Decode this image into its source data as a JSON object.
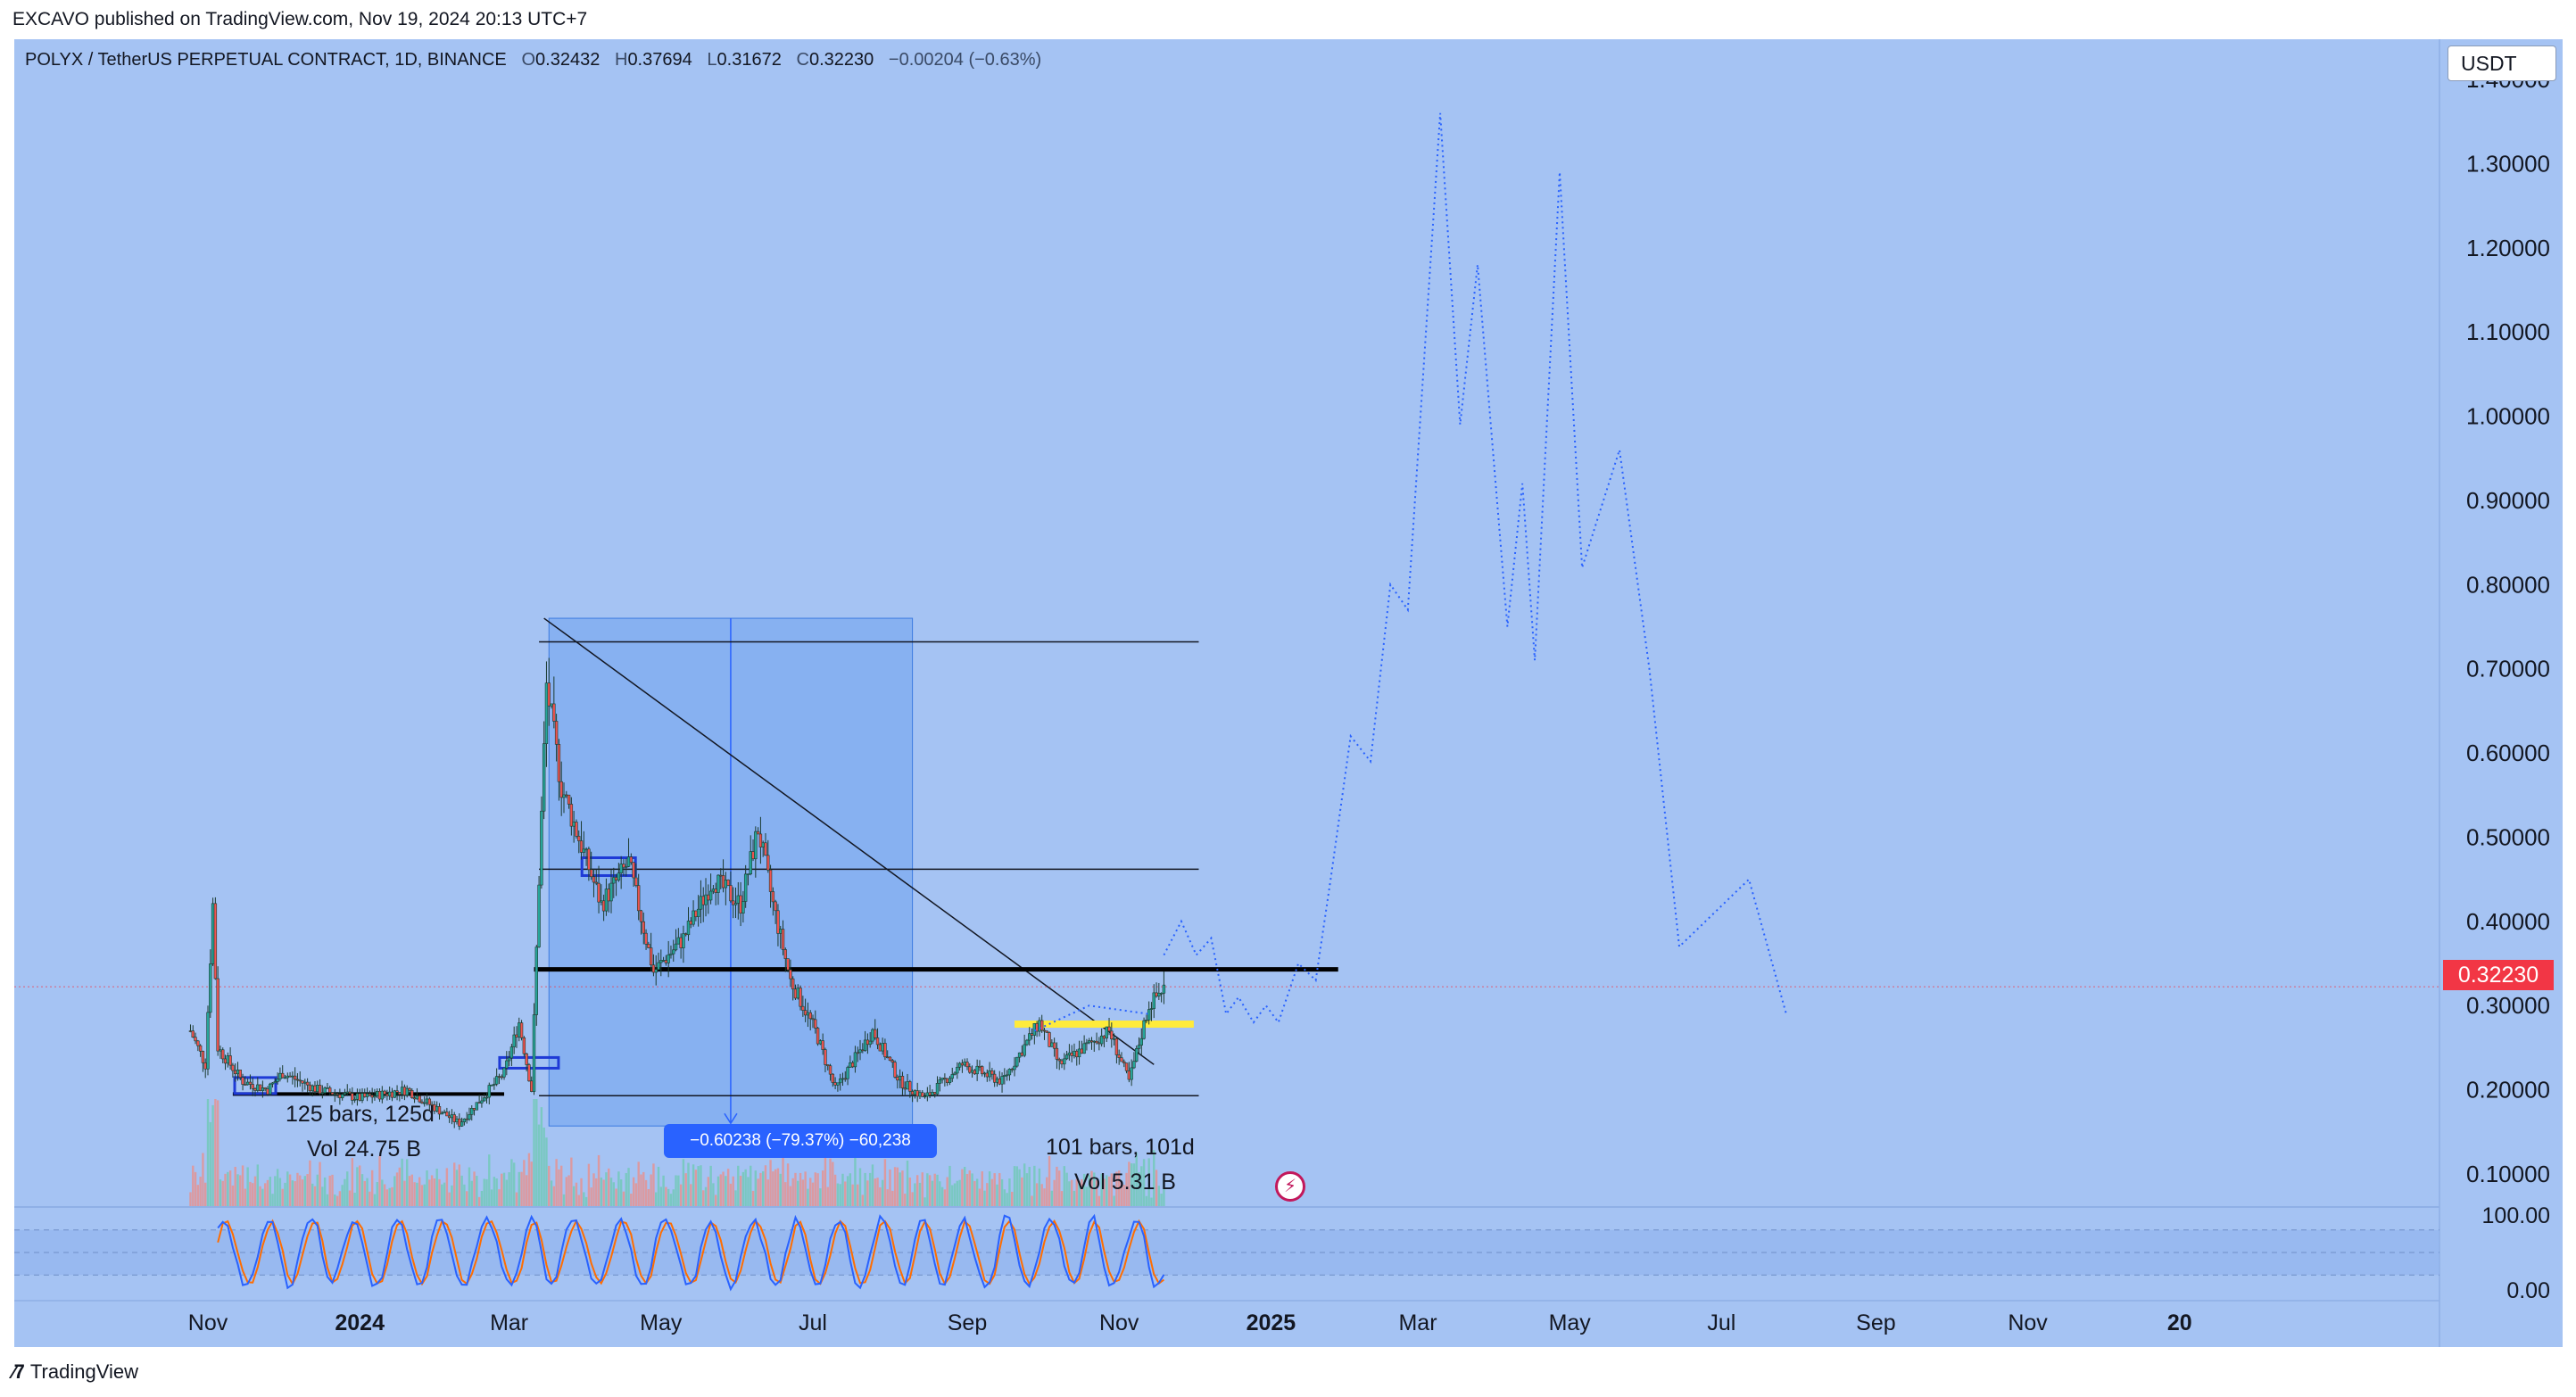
{
  "publisher": "EXCAVO published on TradingView.com, Nov 19, 2024 20:13 UTC+7",
  "symbol": {
    "name": "POLYX / TetherUS PERPETUAL CONTRACT, 1D, BINANCE",
    "o_label": "O",
    "o": "0.32432",
    "h_label": "H",
    "h": "0.37694",
    "l_label": "L",
    "l": "0.31672",
    "c_label": "C",
    "c": "0.32230",
    "change": "−0.00204 (−0.63%)"
  },
  "currency": "USDT",
  "last_price": "0.32230",
  "measure_label": "−0.60238 (−79.37%) −60,238",
  "range1": {
    "bars": "125 bars, 125d",
    "vol": "Vol 24.75 B"
  },
  "range2": {
    "bars": "101 bars, 101d",
    "vol": "Vol 5.31 B"
  },
  "footer": "TradingView",
  "colors": {
    "background": "#a5c3f3",
    "up_candle": "#26a69a",
    "down_candle": "#ef5350",
    "projection": "#2962ff",
    "measure_box": "#6fa3ee",
    "support_line": "#000000",
    "highlight": "#ffeb3b",
    "last_price": "#f23645",
    "stoch_k": "#2962ff",
    "stoch_d": "#ff6d00"
  },
  "icons": [
    "tradingview-logo-icon",
    "flash-icon"
  ],
  "chart_data": {
    "type": "candlestick",
    "y_ticks": [
      "1.40000",
      "1.30000",
      "1.20000",
      "1.10000",
      "1.00000",
      "0.90000",
      "0.80000",
      "0.70000",
      "0.60000",
      "0.50000",
      "0.40000",
      "0.30000",
      "0.20000",
      "0.10000"
    ],
    "ylim": [
      0.06,
      1.44
    ],
    "x_ticks": [
      "Nov",
      "2024",
      "Mar",
      "May",
      "Jul",
      "Sep",
      "Nov",
      "2025",
      "Mar",
      "May",
      "Jul",
      "Sep",
      "Nov",
      "20"
    ],
    "price_path": [
      [
        "2023-10-25",
        0.27
      ],
      [
        "2023-10-31",
        0.23
      ],
      [
        "2023-11-03",
        0.42
      ],
      [
        "2023-11-05",
        0.25
      ],
      [
        "2023-11-15",
        0.21
      ],
      [
        "2023-11-25",
        0.2
      ],
      [
        "2023-12-01",
        0.22
      ],
      [
        "2023-12-15",
        0.2
      ],
      [
        "2024-01-01",
        0.19
      ],
      [
        "2024-01-20",
        0.2
      ],
      [
        "2024-02-10",
        0.16
      ],
      [
        "2024-02-28",
        0.22
      ],
      [
        "2024-03-05",
        0.28
      ],
      [
        "2024-03-10",
        0.2
      ],
      [
        "2024-03-13",
        0.45
      ],
      [
        "2024-03-16",
        0.68
      ],
      [
        "2024-03-22",
        0.56
      ],
      [
        "2024-03-30",
        0.49
      ],
      [
        "2024-04-07",
        0.42
      ],
      [
        "2024-04-18",
        0.47
      ],
      [
        "2024-04-28",
        0.34
      ],
      [
        "2024-05-10",
        0.38
      ],
      [
        "2024-05-22",
        0.45
      ],
      [
        "2024-06-02",
        0.42
      ],
      [
        "2024-06-09",
        0.51
      ],
      [
        "2024-06-15",
        0.42
      ],
      [
        "2024-06-22",
        0.33
      ],
      [
        "2024-07-02",
        0.27
      ],
      [
        "2024-07-10",
        0.2
      ],
      [
        "2024-07-25",
        0.27
      ],
      [
        "2024-08-05",
        0.21
      ],
      [
        "2024-08-15",
        0.19
      ],
      [
        "2024-08-30",
        0.23
      ],
      [
        "2024-09-15",
        0.21
      ],
      [
        "2024-09-30",
        0.28
      ],
      [
        "2024-10-08",
        0.23
      ],
      [
        "2024-10-18",
        0.25
      ],
      [
        "2024-10-28",
        0.27
      ],
      [
        "2024-11-05",
        0.21
      ],
      [
        "2024-11-13",
        0.3
      ],
      [
        "2024-11-19",
        0.322
      ]
    ],
    "projection_path": [
      [
        "2024-11-19",
        0.36
      ],
      [
        "2024-11-26",
        0.4
      ],
      [
        "2024-12-02",
        0.36
      ],
      [
        "2024-12-08",
        0.38
      ],
      [
        "2024-12-14",
        0.29
      ],
      [
        "2024-12-19",
        0.31
      ],
      [
        "2024-12-25",
        0.28
      ],
      [
        "2024-12-30",
        0.3
      ],
      [
        "2025-01-04",
        0.28
      ],
      [
        "2025-01-12",
        0.35
      ],
      [
        "2025-01-19",
        0.33
      ],
      [
        "2025-01-25",
        0.45
      ],
      [
        "2025-02-02",
        0.62
      ],
      [
        "2025-02-10",
        0.59
      ],
      [
        "2025-02-18",
        0.8
      ],
      [
        "2025-02-25",
        0.77
      ],
      [
        "2025-03-10",
        1.36
      ],
      [
        "2025-03-18",
        0.99
      ],
      [
        "2025-03-25",
        1.18
      ],
      [
        "2025-04-06",
        0.75
      ],
      [
        "2025-04-12",
        0.92
      ],
      [
        "2025-04-17",
        0.71
      ],
      [
        "2025-04-27",
        1.29
      ],
      [
        "2025-05-06",
        0.82
      ],
      [
        "2025-05-21",
        0.96
      ],
      [
        "2025-06-02",
        0.7
      ],
      [
        "2025-06-14",
        0.37
      ],
      [
        "2025-07-12",
        0.45
      ],
      [
        "2025-07-27",
        0.29
      ]
    ],
    "support_level": 0.343,
    "box_top": 0.76,
    "box_bottom": 0.157,
    "horizontal_lines": [
      0.732,
      0.462,
      0.193
    ],
    "highlight_level": 0.278,
    "stochastic": {
      "ylim": [
        0,
        100
      ],
      "upper": 80,
      "lower": 20,
      "ticks": [
        "100.00",
        "0.00"
      ]
    }
  }
}
